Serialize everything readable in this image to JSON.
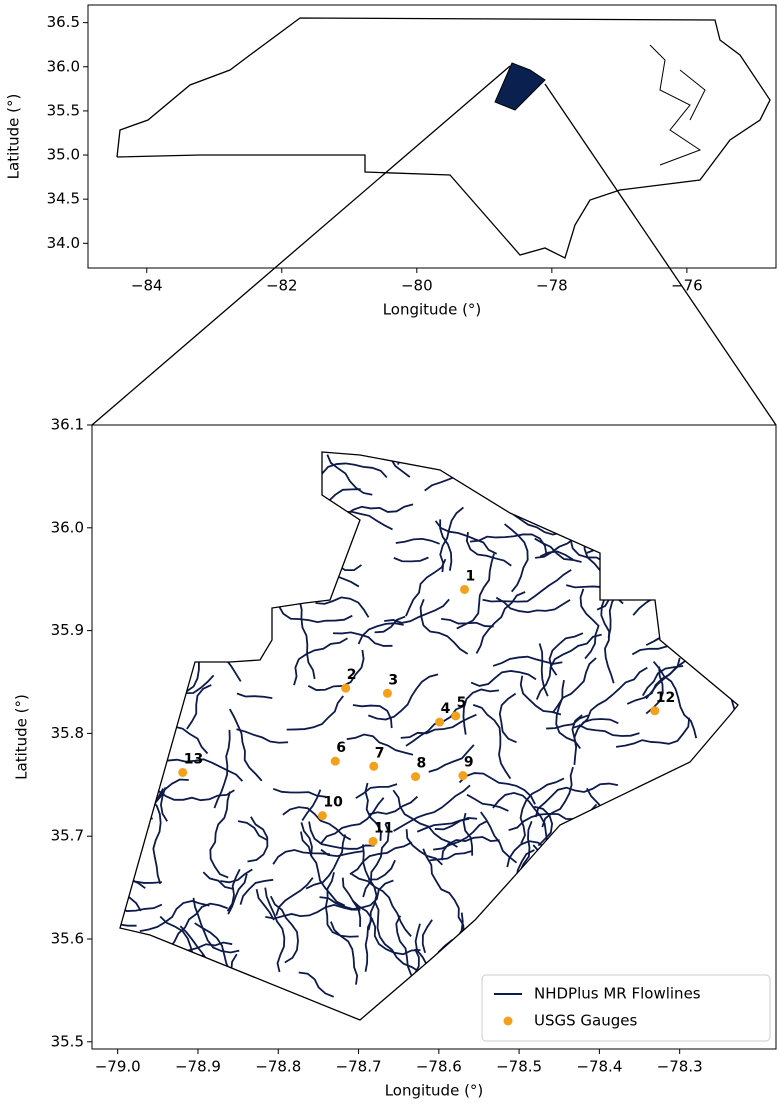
{
  "chart_data": [
    {
      "type": "map",
      "xlabel": "Longitude (°)",
      "ylabel": "Latitude (°)",
      "xlim": [
        -84.87,
        -74.68
      ],
      "ylim": [
        33.72,
        36.7
      ],
      "xticks": [
        {
          "value": -84,
          "label": "−84"
        },
        {
          "value": -82,
          "label": "−82"
        },
        {
          "value": -80,
          "label": "−80"
        },
        {
          "value": -78,
          "label": "−78"
        },
        {
          "value": -76,
          "label": "−76"
        }
      ],
      "yticks": [
        {
          "value": 34.0,
          "label": "34.0"
        },
        34.5,
        {
          "value": 35.0,
          "label": "35.0"
        },
        35.5,
        {
          "value": 36.0,
          "label": "36.0"
        },
        36.5
      ],
      "highlight_color": "#0a2150"
    },
    {
      "type": "scatter",
      "xlabel": "Longitude (°)",
      "ylabel": "Latitude (°)",
      "xlim": [
        -79.032,
        -78.18
      ],
      "ylim": [
        35.493,
        36.1
      ],
      "xticks": [
        {
          "value": -79.0,
          "label": "−79.0"
        },
        {
          "value": -78.9,
          "label": "−78.9"
        },
        {
          "value": -78.8,
          "label": "−78.8"
        },
        {
          "value": -78.7,
          "label": "−78.7"
        },
        {
          "value": -78.6,
          "label": "−78.6"
        },
        {
          "value": -78.5,
          "label": "−78.5"
        },
        {
          "value": -78.4,
          "label": "−78.4"
        },
        {
          "value": -78.3,
          "label": "−78.3"
        }
      ],
      "yticks": [
        35.5,
        35.6,
        35.7,
        35.8,
        35.9,
        {
          "value": 36.0,
          "label": "36.0"
        },
        36.1
      ],
      "flowlines": {
        "name": "NHDPlus MR Flowlines",
        "color": "#0d1a4a"
      },
      "gauges": {
        "name": "USGS Gauges",
        "color": "#f5a01a",
        "labels": [
          "1",
          "2",
          "3",
          "4",
          "5",
          "6",
          "7",
          "8",
          "9",
          "10",
          "11",
          "12",
          "13"
        ],
        "x": [
          -78.568,
          -78.716,
          -78.664,
          -78.599,
          -78.579,
          -78.729,
          -78.681,
          -78.629,
          -78.57,
          -78.745,
          -78.682,
          -78.331,
          -78.919
        ],
        "y": [
          35.94,
          35.844,
          35.839,
          35.811,
          35.817,
          35.773,
          35.768,
          35.758,
          35.759,
          35.72,
          35.695,
          35.822,
          35.762
        ]
      },
      "legend": "lower right"
    }
  ]
}
